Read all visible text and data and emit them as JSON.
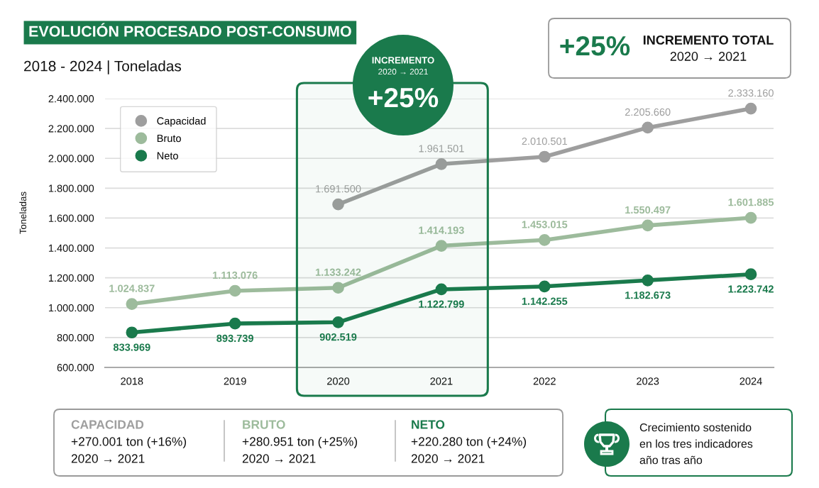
{
  "chart_data": {
    "type": "line",
    "title": "EVOLUCIÓN PROCESADO POST-CONSUMO",
    "subtitle": "2018 - 2024 | Toneladas",
    "ylabel": "Toneladas",
    "categories": [
      "2018",
      "2019",
      "2020",
      "2021",
      "2022",
      "2023",
      "2024"
    ],
    "series": [
      {
        "name": "Capacidad",
        "color": "#9e9e9e",
        "values": [
          null,
          null,
          1691500,
          1961501,
          2010501,
          2205660,
          2333160
        ],
        "value_labels": [
          null,
          null,
          "1.691.500",
          "1.961.501",
          "2.010.501",
          "2.205.660",
          "2.333.160"
        ]
      },
      {
        "name": "Bruto",
        "color": "#9dbb9c",
        "values": [
          1024837,
          1113076,
          1133242,
          1414193,
          1453015,
          1550497,
          1601885
        ],
        "value_labels": [
          "1.024.837",
          "1.113.076",
          "1.133.242",
          "1.414.193",
          "1.453.015",
          "1.550.497",
          "1.601.885"
        ]
      },
      {
        "name": "Neto",
        "color": "#1a7a4c",
        "values": [
          833969,
          893739,
          902519,
          1122799,
          1142255,
          1182673,
          1223742
        ],
        "value_labels": [
          "833.969",
          "893.739",
          "902.519",
          "1.122.799",
          "1.142.255",
          "1.182.673",
          "1.223.742"
        ]
      }
    ],
    "ylim": [
      600000,
      2400000
    ],
    "yticks": [
      {
        "value": 600000,
        "label": "600.000"
      },
      {
        "value": 800000,
        "label": "800.000"
      },
      {
        "value": 1000000,
        "label": "1.000.000"
      },
      {
        "value": 1200000,
        "label": "1.200.000"
      },
      {
        "value": 1400000,
        "label": "1.400.000"
      },
      {
        "value": 1600000,
        "label": "1.600.000"
      },
      {
        "value": 1800000,
        "label": "1.800.000"
      },
      {
        "value": 2000000,
        "label": "2.000.000"
      },
      {
        "value": 2200000,
        "label": "2.200.000"
      },
      {
        "value": 2400000,
        "label": "2.400.000"
      }
    ],
    "grid": "y",
    "legend": "top left",
    "marker": "circle",
    "line_style": "solid",
    "bands": [
      {
        "axis": "x",
        "from": "2020",
        "to": "2021",
        "color": "#1a7a4c"
      }
    ],
    "annotations": [
      "INCREMENTO",
      "2020 → 2021",
      "+25%",
      "+25%",
      "INCREMENTO TOTAL",
      "2020 → 2021",
      "CAPACIDAD",
      "+270.001 ton (+16%)",
      "2020 → 2021",
      "BRUTO",
      "+280.951 ton (+25%)",
      "2020 → 2021",
      "NETO",
      "+220.280 ton (+24%)",
      "2020 → 2021",
      "Crecimiento sostenido",
      "en los tres indicadores",
      "año tras año"
    ]
  }
}
